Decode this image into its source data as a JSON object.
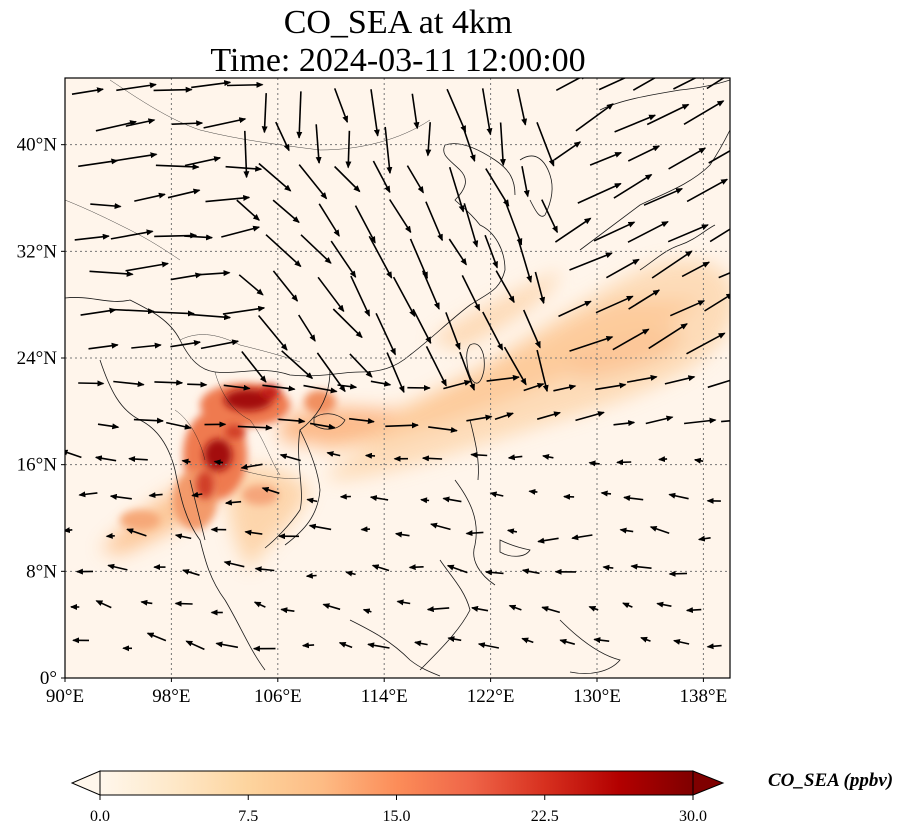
{
  "title": {
    "line1": "CO_SEA at 4km",
    "line2": "Time: 2024-03-11 12:00:00"
  },
  "map": {
    "extent": {
      "lon": [
        90,
        140
      ],
      "lat": [
        0,
        45
      ]
    },
    "lon_ticks": [
      {
        "value": 90,
        "label": "90°E"
      },
      {
        "value": 98,
        "label": "98°E"
      },
      {
        "value": 106,
        "label": "106°E"
      },
      {
        "value": 114,
        "label": "114°E"
      },
      {
        "value": 122,
        "label": "122°E"
      },
      {
        "value": 130,
        "label": "130°E"
      },
      {
        "value": 138,
        "label": "138°E"
      }
    ],
    "lat_ticks": [
      {
        "value": 0,
        "label": "0°"
      },
      {
        "value": 8,
        "label": "8°N"
      },
      {
        "value": 16,
        "label": "16°N"
      },
      {
        "value": 24,
        "label": "24°N"
      },
      {
        "value": 32,
        "label": "32°N"
      },
      {
        "value": 40,
        "label": "40°N"
      }
    ],
    "gridlines": true,
    "colors": {
      "coast": "#1a1a1a",
      "grid": "#777777",
      "background": "#fff5eb",
      "vector": "#000000"
    }
  },
  "colorbar": {
    "label": "CO_SEA (ppbv)",
    "ticks": [
      "0.0",
      "7.5",
      "15.0",
      "22.5",
      "30.0"
    ],
    "range": [
      0,
      30
    ],
    "extend": "both",
    "colormap": "OrRd",
    "stops": [
      "#fff7ec",
      "#fee8c8",
      "#fdd49e",
      "#fdbb84",
      "#fc8d59",
      "#ef6548",
      "#d7301f",
      "#b30000",
      "#7f0000"
    ]
  }
}
